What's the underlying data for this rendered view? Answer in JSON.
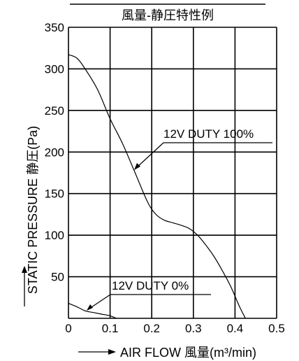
{
  "chart_data": {
    "type": "line",
    "title": "風量-静圧特性例",
    "xlabel": "AIR FLOW 風量(m³/min)",
    "ylabel": "STATIC PRESSURE 静圧(Pa)",
    "xlim": [
      0,
      0.5
    ],
    "ylim": [
      0,
      350
    ],
    "x_ticks": [
      "0",
      "0.1",
      "0.2",
      "0.3",
      "0.4",
      "0.5"
    ],
    "y_ticks": [
      "50",
      "100",
      "150",
      "200",
      "250",
      "300",
      "350"
    ],
    "grid": true,
    "legend": "none",
    "line_color": "#000000",
    "series": [
      {
        "name": "12V DUTY 100%",
        "x": [
          0,
          0.02,
          0.04,
          0.07,
          0.1,
          0.13,
          0.16,
          0.19,
          0.21,
          0.23,
          0.25,
          0.27,
          0.29,
          0.31,
          0.33,
          0.35,
          0.37,
          0.39,
          0.41,
          0.425
        ],
        "y": [
          317,
          313,
          300,
          275,
          240,
          210,
          175,
          140,
          125,
          118,
          115,
          112,
          108,
          100,
          88,
          74,
          57,
          38,
          15,
          0
        ]
      },
      {
        "name": "12V DUTY 0%",
        "x": [
          0,
          0.02,
          0.04,
          0.06,
          0.08,
          0.1,
          0.115
        ],
        "y": [
          18,
          14,
          9,
          7,
          5,
          3,
          0
        ]
      }
    ],
    "annotations": [
      {
        "text": "12V DUTY 100%",
        "series": 0
      },
      {
        "text": "12V DUTY 0%",
        "series": 1
      }
    ]
  }
}
